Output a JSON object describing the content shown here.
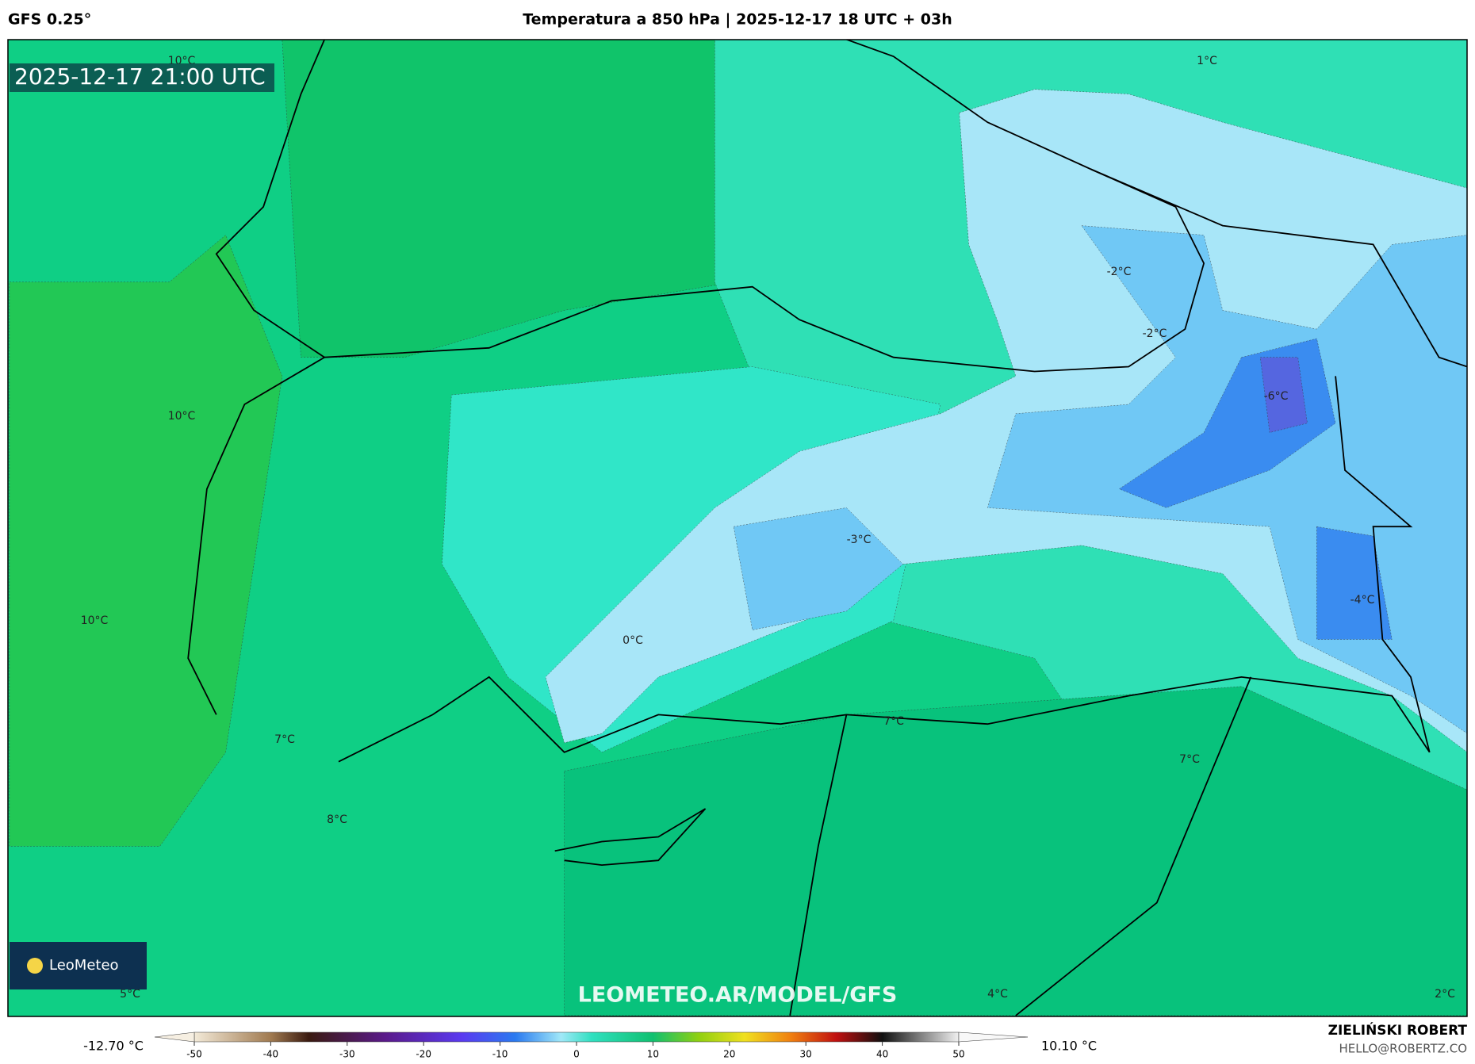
{
  "header": {
    "left": "GFS 0.25°",
    "title": "Temperatura a 850 hPa | 2025-12-17 18 UTC + 03h"
  },
  "map": {
    "timestamp": "2025-12-17 21:00 UTC",
    "watermark": "LEOMETEO.AR/MODEL/GFS",
    "logo": "LeoMeteo",
    "contour_labels": [
      "10°C",
      "10°C",
      "10°C",
      "7°C",
      "8°C",
      "5°C",
      "1°C",
      "-2°C",
      "-2°C",
      "-6°C",
      "-3°C",
      "0°C",
      "-4°C",
      "7°C",
      "7°C",
      "4°C",
      "2°C"
    ]
  },
  "colorbar": {
    "min_label": "-12.70 °C",
    "max_label": "10.10 °C",
    "ticks": [
      -50,
      -40,
      -30,
      -20,
      -10,
      0,
      10,
      20,
      30,
      40,
      50
    ]
  },
  "credit": {
    "name": "ZIELIŃSKI ROBERT",
    "email": "HELLO@ROBERTZ.CO"
  }
}
